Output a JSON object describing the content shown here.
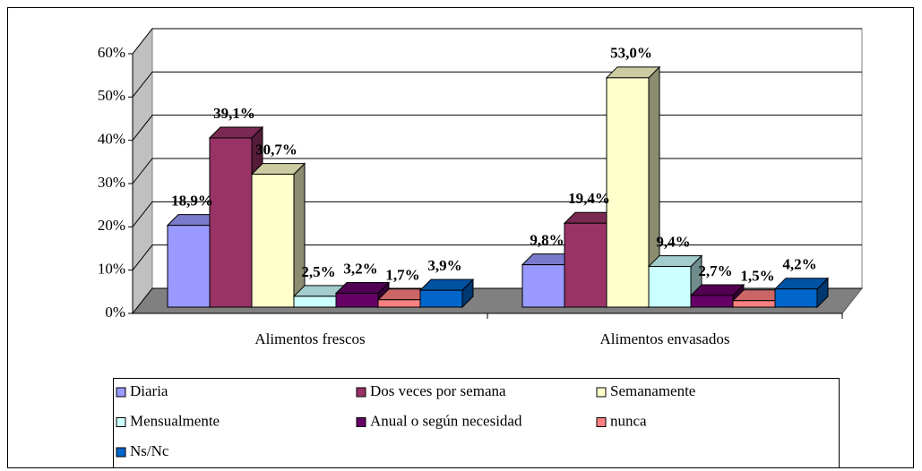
{
  "chart_data": {
    "type": "bar3d",
    "categories": [
      "Alimentos frescos",
      "Alimentos envasados"
    ],
    "series": [
      {
        "name": "Diaria",
        "color": "#9999ff",
        "values": [
          18.9,
          9.8
        ],
        "value_labels": [
          "18,9%",
          "9,8%"
        ]
      },
      {
        "name": "Dos veces por semana",
        "color": "#993366",
        "values": [
          39.1,
          19.4
        ],
        "value_labels": [
          "39,1%",
          "19,4%"
        ]
      },
      {
        "name": "Semanamente",
        "color": "#ffffcc",
        "values": [
          30.7,
          53.0
        ],
        "value_labels": [
          "30,7%",
          "53,0%"
        ]
      },
      {
        "name": "Mensualmente",
        "color": "#ccffff",
        "values": [
          2.5,
          9.4
        ],
        "value_labels": [
          "2,5%",
          "9,4%"
        ]
      },
      {
        "name": "Anual o según necesidad",
        "color": "#660066",
        "values": [
          3.2,
          2.7
        ],
        "value_labels": [
          "3,2%",
          "2,7%"
        ]
      },
      {
        "name": "nunca",
        "color": "#ff8080",
        "values": [
          1.7,
          1.5
        ],
        "value_labels": [
          "1,7%",
          "1,5%"
        ]
      },
      {
        "name": "Ns/Nc",
        "color": "#0066cc",
        "values": [
          3.9,
          4.2
        ],
        "value_labels": [
          "3,9%",
          "4,2%"
        ]
      }
    ],
    "ylim": [
      0,
      60
    ],
    "yticks": [
      {
        "value": 0,
        "label": "0%"
      },
      {
        "value": 10,
        "label": "10%"
      },
      {
        "value": 20,
        "label": "20%"
      },
      {
        "value": 30,
        "label": "30%"
      },
      {
        "value": 40,
        "label": "40%"
      },
      {
        "value": 50,
        "label": "50%"
      },
      {
        "value": 60,
        "label": "60%"
      }
    ],
    "grid": true,
    "legend": "bottom"
  }
}
